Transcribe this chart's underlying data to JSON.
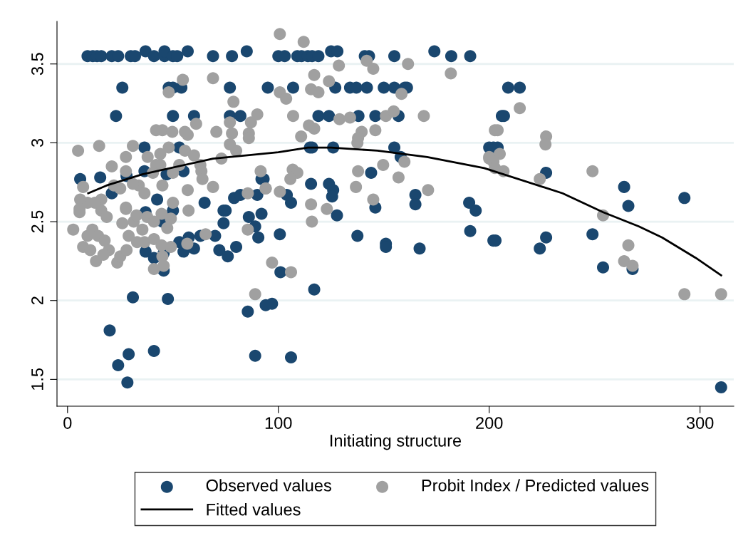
{
  "chart_data": {
    "type": "scatter",
    "xlabel": "Initiating structure",
    "xlim": [
      -5,
      316
    ],
    "ylim": [
      1.33,
      3.77
    ],
    "xticks": [
      0,
      100,
      200,
      300
    ],
    "yticks": [
      1.5,
      2,
      2.5,
      3,
      3.5
    ],
    "grid": "y",
    "legend": "bottom",
    "series": [
      {
        "name": "Observed values",
        "color": "#1a476f",
        "marker": "circle",
        "x": [
          9.5,
          12,
          14,
          16,
          21,
          24,
          30,
          32,
          37,
          41,
          46,
          46,
          50,
          52,
          57,
          69,
          78,
          85,
          100,
          103,
          109,
          111,
          114,
          116,
          119,
          125,
          128,
          141,
          143,
          155,
          174,
          182,
          191,
          26,
          48,
          50,
          54,
          77,
          95,
          107,
          127,
          134,
          137,
          142,
          150,
          155,
          160,
          161,
          209,
          23,
          50,
          60,
          77,
          82,
          119,
          124,
          138,
          146,
          157,
          170,
          206,
          207,
          115,
          155,
          200,
          202,
          204,
          6,
          15.5,
          36.5,
          53,
          36.5,
          47,
          55,
          28,
          21,
          34,
          42.5,
          37,
          65,
          75,
          79,
          82,
          90,
          92,
          58,
          50,
          45,
          74,
          74,
          86,
          92,
          89,
          90.5,
          37,
          41,
          45.6,
          45.6,
          53,
          57.5,
          55,
          60,
          63,
          70,
          72,
          76,
          80,
          31,
          47.6,
          85.5,
          94,
          20,
          29,
          24,
          41,
          28.4,
          89,
          115.5,
          124,
          126,
          125.5,
          127.8,
          104,
          106,
          144,
          146,
          165,
          165,
          158,
          116,
          126,
          93,
          100.7,
          137.5,
          151,
          151,
          167,
          190.5,
          193.6,
          191,
          202,
          101,
          117,
          97,
          106,
          214.5,
          227,
          203,
          227,
          224,
          249,
          264,
          266,
          254,
          268,
          292.6,
          310
        ],
        "values": [
          3.55,
          3.55,
          3.55,
          3.55,
          3.55,
          3.55,
          3.55,
          3.55,
          3.58,
          3.55,
          3.55,
          3.58,
          3.55,
          3.55,
          3.58,
          3.55,
          3.55,
          3.58,
          3.55,
          3.55,
          3.55,
          3.55,
          3.55,
          3.55,
          3.55,
          3.58,
          3.58,
          3.55,
          3.55,
          3.55,
          3.58,
          3.55,
          3.55,
          3.35,
          3.35,
          3.35,
          3.35,
          3.35,
          3.35,
          3.35,
          3.35,
          3.35,
          3.35,
          3.35,
          3.35,
          3.35,
          3.35,
          3.35,
          3.35,
          3.17,
          3.17,
          3.17,
          3.17,
          3.17,
          3.17,
          3.17,
          3.17,
          3.17,
          3.17,
          null,
          3.17,
          3.17,
          2.97,
          2.97,
          2.97,
          2.97,
          2.97,
          2.77,
          2.78,
          2.97,
          2.97,
          2.82,
          2.8,
          2.82,
          2.79,
          2.68,
          null,
          2.64,
          2.56,
          2.62,
          2.57,
          2.65,
          2.67,
          2.67,
          2.77,
          null,
          2.57,
          2.5,
          2.57,
          2.49,
          2.53,
          2.55,
          2.47,
          2.4,
          2.31,
          2.27,
          2.19,
          2.3,
          2.37,
          2.4,
          2.31,
          2.33,
          2.41,
          2.41,
          2.32,
          2.28,
          2.34,
          2.02,
          2.01,
          1.93,
          1.97,
          1.81,
          1.66,
          1.59,
          1.68,
          1.48,
          1.65,
          2.74,
          2.74,
          2.7,
          2.66,
          2.54,
          2.67,
          2.62,
          2.81,
          2.59,
          2.67,
          2.61,
          2.91,
          2.97,
          2.97,
          2.77,
          2.42,
          2.41,
          2.36,
          2.34,
          2.33,
          2.62,
          2.57,
          2.44,
          2.38,
          2.18,
          2.07,
          1.98,
          1.64,
          3.35,
          2.81,
          2.38,
          2.4,
          2.33,
          2.42,
          2.72,
          2.6,
          2.21,
          2.2,
          2.65,
          1.45
        ]
      },
      {
        "name": "Probit Index / Predicted values",
        "color": "#a0a0a0",
        "marker": "circle",
        "x": [
          5,
          15,
          7.4,
          21,
          27.7,
          31,
          38,
          44,
          42,
          45,
          48,
          49.7,
          54.7,
          55.7,
          57,
          61,
          69,
          70.6,
          78.7,
          77,
          78,
          86,
          87,
          90,
          86,
          77,
          80,
          73,
          55.7,
          48,
          44,
          42,
          27.7,
          40.5,
          50,
          53,
          60,
          63,
          63.5,
          64,
          69,
          91.6,
          94,
          85.5,
          57,
          45,
          33.8,
          31,
          25,
          22,
          16,
          13,
          9.5,
          6,
          5.7,
          27.7,
          36.5,
          50,
          2.7,
          5.7,
          9.5,
          7.4,
          11.8,
          14.5,
          13.5,
          17.6,
          19.6,
          17,
          10.8,
          16,
          18.6,
          23.6,
          26,
          27.7,
          25,
          29,
          28,
          31.4,
          32.7,
          33,
          35.5,
          36.5,
          41,
          37.8,
          41,
          44.6,
          49,
          47.3,
          49,
          44.6,
          45,
          45.6,
          41,
          56.8,
          57.4,
          65.5,
          85.5,
          89,
          100.7,
          112,
          128.7,
          141.9,
          145,
          161.5,
          181.8,
          117,
          124,
          100.7,
          103.7,
          115.5,
          119,
          158.4,
          107,
          129,
          134,
          151,
          154.7,
          169,
          114.5,
          117,
          110.8,
          146,
          139.5,
          137.8,
          137.5,
          159.8,
          149.7,
          106.8,
          109,
          105.7,
          137.8,
          157,
          136.8,
          100.7,
          94,
          171,
          145,
          115.5,
          123,
          115.9,
          97,
          106,
          202.7,
          200,
          214.5,
          204,
          227,
          226.7,
          205,
          200,
          202,
          202.7,
          206.8,
          224,
          249,
          254,
          266,
          264,
          268,
          292.6,
          310
        ],
        "values": [
          2.95,
          2.98,
          2.72,
          2.85,
          2.91,
          2.98,
          2.91,
          2.93,
          3.08,
          3.08,
          3.32,
          3.07,
          3.4,
          3.07,
          3.05,
          3.12,
          3.41,
          3.07,
          3.26,
          3.13,
          3.06,
          3.06,
          3.13,
          3.18,
          3.03,
          2.99,
          2.95,
          2.9,
          2.95,
          2.97,
          2.86,
          2.86,
          2.82,
          2.81,
          2.81,
          2.86,
          2.92,
          2.86,
          2.82,
          2.77,
          2.72,
          2.82,
          2.71,
          2.68,
          2.7,
          2.73,
          2.73,
          2.74,
          2.71,
          2.73,
          2.64,
          2.62,
          2.62,
          2.64,
          2.58,
          2.59,
          2.68,
          2.62,
          2.45,
          2.56,
          2.41,
          2.34,
          2.45,
          2.41,
          2.25,
          2.38,
          2.32,
          2.29,
          2.32,
          2.57,
          2.53,
          2.24,
          2.49,
          2.58,
          2.28,
          2.41,
          2.32,
          2.5,
          2.54,
          2.37,
          2.45,
          2.37,
          2.39,
          2.53,
          2.5,
          2.55,
          2.52,
          2.46,
          2.34,
          2.35,
          2.28,
          2.22,
          2.2,
          2.36,
          2.57,
          2.42,
          2.45,
          2.04,
          3.69,
          3.64,
          3.49,
          3.52,
          3.47,
          3.5,
          3.44,
          3.43,
          3.39,
          3.32,
          3.28,
          3.34,
          3.32,
          3.31,
          3.17,
          3.15,
          3.16,
          3.17,
          3.2,
          3.17,
          3.11,
          3.09,
          3.04,
          3.08,
          3.07,
          3.03,
          3.0,
          2.88,
          2.86,
          2.83,
          2.81,
          2.77,
          2.82,
          2.78,
          2.72,
          2.69,
          2.71,
          2.7,
          2.64,
          2.61,
          2.58,
          2.5,
          2.24,
          2.18,
          3.08,
          2.9,
          3.22,
          3.08,
          3.04,
          2.99,
          2.93,
          2.91,
          2.88,
          2.84,
          2.82,
          2.77,
          2.82,
          2.54,
          2.35,
          2.25,
          2.22,
          2.04,
          2.04
        ]
      },
      {
        "name": "Fitted values",
        "color": "#000000",
        "type": "line",
        "line_style": "solid",
        "x": [
          9.8,
          18.6,
          35.5,
          69,
          100,
          114,
          125,
          147,
          170.6,
          197.6,
          234.8,
          254,
          271,
          282,
          298,
          310
        ],
        "values": [
          2.68,
          2.73,
          2.8,
          2.9,
          2.94,
          2.97,
          2.97,
          2.95,
          2.91,
          2.84,
          2.68,
          2.56,
          2.47,
          2.4,
          2.27,
          2.16
        ]
      }
    ]
  }
}
